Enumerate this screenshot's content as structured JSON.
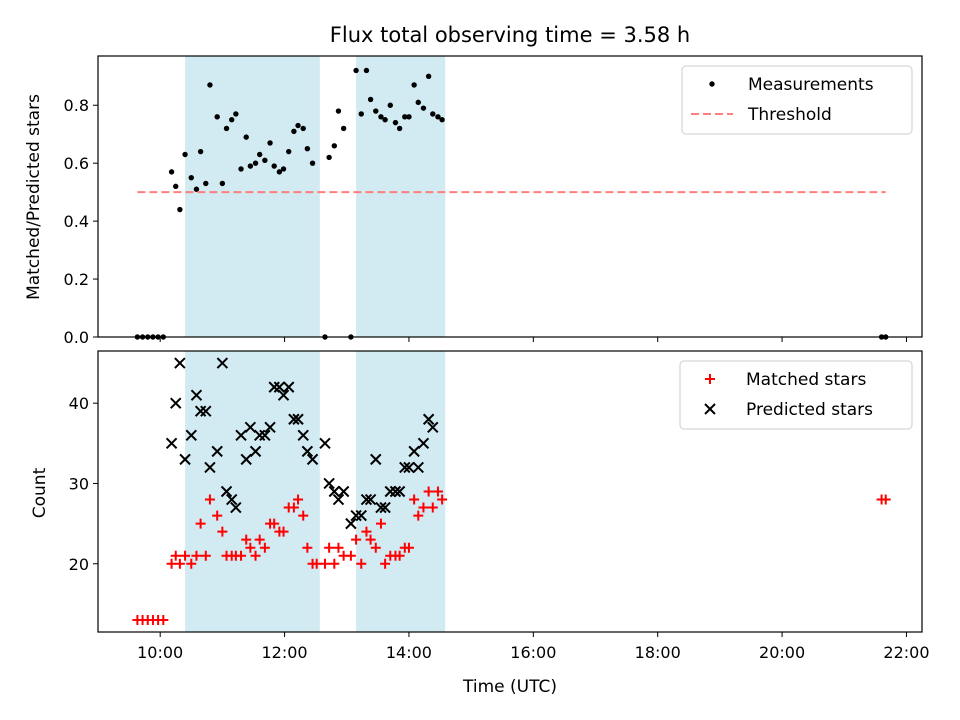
{
  "chart_data": [
    {
      "type": "scatter",
      "title": "Flux total observing time = 3.58 h",
      "xlabel": "",
      "ylabel": "Matched/Predicted stars",
      "xlim": [
        "09:00",
        "22:15"
      ],
      "ylim": [
        0,
        0.97
      ],
      "yticks": [
        "0.0",
        "0.2",
        "0.4",
        "0.6",
        "0.8"
      ],
      "xticks": [
        "10:00",
        "12:00",
        "14:00",
        "16:00",
        "18:00",
        "20:00",
        "22:00"
      ],
      "xtick_labels_shown": false,
      "legend": "top-right",
      "grid": false,
      "shaded_intervals": [
        {
          "start": "10:24",
          "end": "12:34",
          "color": "#add8e6"
        },
        {
          "start": "13:09",
          "end": "14:35",
          "color": "#add8e6"
        }
      ],
      "series": [
        {
          "name": "Measurements",
          "marker": "dot",
          "color": "#000000",
          "points": [
            [
              "09:38",
              0.0
            ],
            [
              "09:43",
              0.0
            ],
            [
              "09:48",
              0.0
            ],
            [
              "09:53",
              0.0
            ],
            [
              "09:58",
              0.0
            ],
            [
              "10:03",
              0.0
            ],
            [
              "10:11",
              0.57
            ],
            [
              "10:15",
              0.52
            ],
            [
              "10:19",
              0.44
            ],
            [
              "10:24",
              0.63
            ],
            [
              "10:30",
              0.55
            ],
            [
              "10:35",
              0.51
            ],
            [
              "10:39",
              0.64
            ],
            [
              "10:44",
              0.53
            ],
            [
              "10:48",
              0.87
            ],
            [
              "10:55",
              0.76
            ],
            [
              "11:00",
              0.53
            ],
            [
              "11:04",
              0.72
            ],
            [
              "11:09",
              0.75
            ],
            [
              "11:13",
              0.77
            ],
            [
              "11:18",
              0.58
            ],
            [
              "11:23",
              0.69
            ],
            [
              "11:27",
              0.59
            ],
            [
              "11:32",
              0.6
            ],
            [
              "11:36",
              0.63
            ],
            [
              "11:41",
              0.61
            ],
            [
              "11:46",
              0.67
            ],
            [
              "11:50",
              0.59
            ],
            [
              "11:55",
              0.57
            ],
            [
              "11:59",
              0.58
            ],
            [
              "12:04",
              0.64
            ],
            [
              "12:09",
              0.71
            ],
            [
              "12:13",
              0.73
            ],
            [
              "12:18",
              0.72
            ],
            [
              "12:22",
              0.65
            ],
            [
              "12:27",
              0.6
            ],
            [
              "12:39",
              0.0
            ],
            [
              "12:43",
              0.62
            ],
            [
              "12:48",
              0.66
            ],
            [
              "12:52",
              0.78
            ],
            [
              "12:57",
              0.72
            ],
            [
              "13:04",
              0.0
            ],
            [
              "13:09",
              0.92
            ],
            [
              "13:14",
              0.77
            ],
            [
              "13:19",
              0.92
            ],
            [
              "13:23",
              0.82
            ],
            [
              "13:28",
              0.78
            ],
            [
              "13:33",
              0.76
            ],
            [
              "13:37",
              0.75
            ],
            [
              "13:42",
              0.8
            ],
            [
              "13:47",
              0.74
            ],
            [
              "13:51",
              0.72
            ],
            [
              "13:56",
              0.76
            ],
            [
              "14:00",
              0.76
            ],
            [
              "14:05",
              0.87
            ],
            [
              "14:09",
              0.81
            ],
            [
              "14:14",
              0.79
            ],
            [
              "14:19",
              0.9
            ],
            [
              "14:23",
              0.77
            ],
            [
              "14:28",
              0.76
            ],
            [
              "14:32",
              0.75
            ],
            [
              "21:36",
              0.0
            ],
            [
              "21:40",
              0.0
            ]
          ]
        },
        {
          "name": "Threshold",
          "marker": "line",
          "style": "dashed",
          "color": "#ff7f7f",
          "points": [
            [
              "09:38",
              0.5
            ],
            [
              "21:40",
              0.5
            ]
          ]
        }
      ]
    },
    {
      "type": "scatter",
      "title": "",
      "xlabel": "Time (UTC)",
      "ylabel": "Count",
      "xlim": [
        "09:00",
        "22:15"
      ],
      "ylim": [
        11.5,
        46.5
      ],
      "yticks": [
        "20",
        "30",
        "40"
      ],
      "xticks": [
        "10:00",
        "12:00",
        "14:00",
        "16:00",
        "18:00",
        "20:00",
        "22:00"
      ],
      "legend": "top-right",
      "grid": false,
      "shaded_intervals": [
        {
          "start": "10:24",
          "end": "12:34",
          "color": "#add8e6"
        },
        {
          "start": "13:09",
          "end": "14:35",
          "color": "#add8e6"
        }
      ],
      "series": [
        {
          "name": "Matched stars",
          "marker": "plus",
          "color": "#ff0000",
          "points": [
            [
              "09:38",
              13
            ],
            [
              "09:43",
              13
            ],
            [
              "09:48",
              13
            ],
            [
              "09:53",
              13
            ],
            [
              "09:58",
              13
            ],
            [
              "10:03",
              13
            ],
            [
              "10:11",
              20
            ],
            [
              "10:15",
              21
            ],
            [
              "10:19",
              20
            ],
            [
              "10:24",
              21
            ],
            [
              "10:30",
              20
            ],
            [
              "10:35",
              21
            ],
            [
              "10:39",
              25
            ],
            [
              "10:44",
              21
            ],
            [
              "10:48",
              28
            ],
            [
              "10:55",
              26
            ],
            [
              "11:00",
              24
            ],
            [
              "11:04",
              21
            ],
            [
              "11:09",
              21
            ],
            [
              "11:13",
              21
            ],
            [
              "11:18",
              21
            ],
            [
              "11:23",
              23
            ],
            [
              "11:27",
              22
            ],
            [
              "11:32",
              21
            ],
            [
              "11:36",
              23
            ],
            [
              "11:41",
              22
            ],
            [
              "11:46",
              25
            ],
            [
              "11:50",
              25
            ],
            [
              "11:55",
              24
            ],
            [
              "11:59",
              24
            ],
            [
              "12:04",
              27
            ],
            [
              "12:09",
              27
            ],
            [
              "12:13",
              28
            ],
            [
              "12:18",
              26
            ],
            [
              "12:22",
              22
            ],
            [
              "12:27",
              20
            ],
            [
              "12:31",
              20
            ],
            [
              "12:39",
              20
            ],
            [
              "12:43",
              22
            ],
            [
              "12:48",
              20
            ],
            [
              "12:52",
              22
            ],
            [
              "12:57",
              21
            ],
            [
              "13:04",
              21
            ],
            [
              "13:09",
              23
            ],
            [
              "13:14",
              20
            ],
            [
              "13:19",
              24
            ],
            [
              "13:23",
              23
            ],
            [
              "13:28",
              22
            ],
            [
              "13:33",
              25
            ],
            [
              "13:37",
              20
            ],
            [
              "13:42",
              21
            ],
            [
              "13:47",
              21
            ],
            [
              "13:51",
              21
            ],
            [
              "13:56",
              22
            ],
            [
              "14:00",
              22
            ],
            [
              "14:05",
              28
            ],
            [
              "14:09",
              26
            ],
            [
              "14:14",
              27
            ],
            [
              "14:19",
              29
            ],
            [
              "14:23",
              27
            ],
            [
              "14:28",
              29
            ],
            [
              "14:32",
              28
            ],
            [
              "21:36",
              28
            ],
            [
              "21:40",
              28
            ]
          ]
        },
        {
          "name": "Predicted stars",
          "marker": "x",
          "color": "#000000",
          "points": [
            [
              "10:11",
              35
            ],
            [
              "10:15",
              40
            ],
            [
              "10:19",
              45
            ],
            [
              "10:24",
              33
            ],
            [
              "10:30",
              36
            ],
            [
              "10:35",
              41
            ],
            [
              "10:39",
              39
            ],
            [
              "10:44",
              39
            ],
            [
              "10:48",
              32
            ],
            [
              "10:55",
              34
            ],
            [
              "11:00",
              45
            ],
            [
              "11:04",
              29
            ],
            [
              "11:09",
              28
            ],
            [
              "11:13",
              27
            ],
            [
              "11:18",
              36
            ],
            [
              "11:23",
              33
            ],
            [
              "11:27",
              37
            ],
            [
              "11:32",
              34
            ],
            [
              "11:36",
              36
            ],
            [
              "11:41",
              36
            ],
            [
              "11:46",
              37
            ],
            [
              "11:50",
              42
            ],
            [
              "11:55",
              42
            ],
            [
              "11:59",
              41
            ],
            [
              "12:04",
              42
            ],
            [
              "12:09",
              38
            ],
            [
              "12:13",
              38
            ],
            [
              "12:18",
              36
            ],
            [
              "12:22",
              34
            ],
            [
              "12:27",
              33
            ],
            [
              "12:39",
              35
            ],
            [
              "12:43",
              30
            ],
            [
              "12:48",
              29
            ],
            [
              "12:52",
              28
            ],
            [
              "12:57",
              29
            ],
            [
              "13:04",
              25
            ],
            [
              "13:09",
              26
            ],
            [
              "13:14",
              26
            ],
            [
              "13:19",
              28
            ],
            [
              "13:23",
              28
            ],
            [
              "13:28",
              33
            ],
            [
              "13:33",
              27
            ],
            [
              "13:37",
              27
            ],
            [
              "13:42",
              29
            ],
            [
              "13:47",
              29
            ],
            [
              "13:51",
              29
            ],
            [
              "13:56",
              32
            ],
            [
              "14:00",
              32
            ],
            [
              "14:05",
              34
            ],
            [
              "14:09",
              32
            ],
            [
              "14:14",
              35
            ],
            [
              "14:19",
              38
            ],
            [
              "14:23",
              37
            ]
          ]
        }
      ]
    }
  ]
}
